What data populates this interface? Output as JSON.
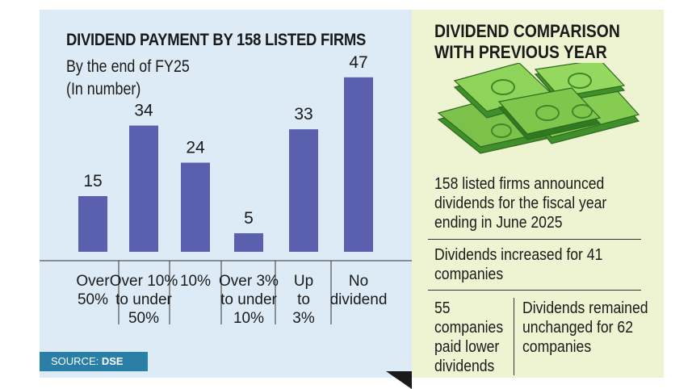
{
  "chart_data": {
    "type": "bar",
    "title": "DIVIDEND PAYMENT BY 158 LISTED FIRMS",
    "subtitle_lines": [
      "By the end of FY25",
      "(In number)"
    ],
    "categories": [
      [
        "Over",
        "50%"
      ],
      [
        "Over 10%",
        "to under",
        "50%"
      ],
      [
        "10%"
      ],
      [
        "Over 3%",
        "to under",
        "10%"
      ],
      [
        "Up",
        "to",
        "3%"
      ],
      [
        "No",
        "dividend"
      ]
    ],
    "values": [
      15,
      34,
      24,
      5,
      33,
      47
    ],
    "ylim": [
      0,
      50
    ],
    "bar_color": "#5a5fae"
  },
  "source": {
    "label": "SOURCE:",
    "value": "DSE"
  },
  "comparison": {
    "title": "DIVIDEND COMPARISON WITH PREVIOUS YEAR",
    "announced": "158 listed firms announced dividends for the  fiscal year ending in June 2025",
    "increased": "Dividends increased for 41 companies",
    "lower": "55 companies paid lower dividends",
    "unchanged": "Dividends remained unchanged for 62 companies"
  },
  "image": {
    "icon": "money-stack-icon"
  }
}
